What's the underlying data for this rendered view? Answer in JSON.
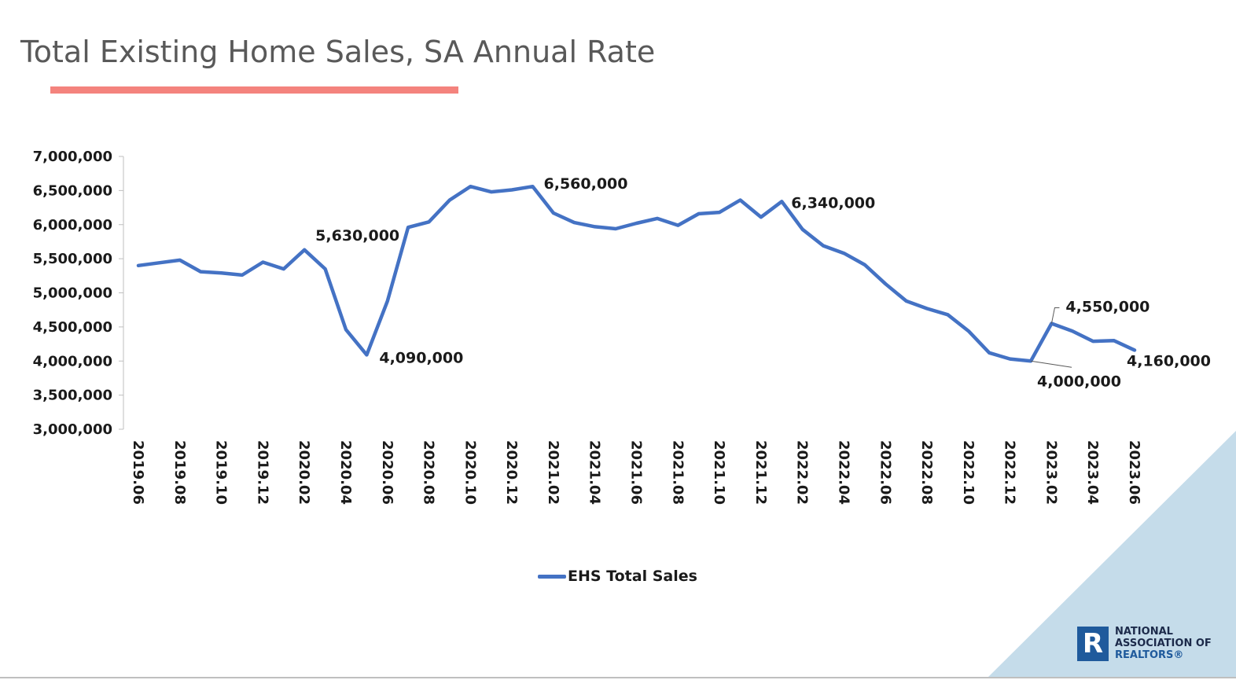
{
  "page": {
    "title": "Total Existing Home Sales, SA Annual Rate",
    "accent_color": "#f4837d",
    "corner_color": "#c5dcea"
  },
  "legend": {
    "series_label": "EHS Total Sales"
  },
  "logo": {
    "icon": "realtor-r-icon",
    "line1": "NATIONAL",
    "line2": "ASSOCIATION OF",
    "line3": "REALTORS®"
  },
  "chart_data": {
    "type": "line",
    "x": [
      "2019.06",
      "2019.07",
      "2019.08",
      "2019.09",
      "2019.10",
      "2019.11",
      "2019.12",
      "2020.01",
      "2020.02",
      "2020.03",
      "2020.04",
      "2020.05",
      "2020.06",
      "2020.07",
      "2020.08",
      "2020.09",
      "2020.10",
      "2020.11",
      "2020.12",
      "2021.01",
      "2021.02",
      "2021.03",
      "2021.04",
      "2021.05",
      "2021.06",
      "2021.07",
      "2021.08",
      "2021.09",
      "2021.10",
      "2021.11",
      "2021.12",
      "2022.01",
      "2022.02",
      "2022.03",
      "2022.04",
      "2022.05",
      "2022.06",
      "2022.07",
      "2022.08",
      "2022.09",
      "2022.10",
      "2022.11",
      "2022.12",
      "2023.01",
      "2023.02",
      "2023.03",
      "2023.04",
      "2023.05",
      "2023.06"
    ],
    "tick_labels": [
      "2019.06",
      "2019.08",
      "2019.10",
      "2019.12",
      "2020.02",
      "2020.04",
      "2020.06",
      "2020.08",
      "2020.10",
      "2020.12",
      "2021.02",
      "2021.04",
      "2021.06",
      "2021.08",
      "2021.10",
      "2021.12",
      "2022.02",
      "2022.04",
      "2022.06",
      "2022.08",
      "2022.10",
      "2022.12",
      "2023.02",
      "2023.04",
      "2023.06"
    ],
    "series": [
      {
        "name": "EHS Total Sales",
        "color": "#4472c4",
        "values": [
          5400000,
          5440000,
          5480000,
          5310000,
          5290000,
          5260000,
          5450000,
          5350000,
          5630000,
          5350000,
          4460000,
          4090000,
          4880000,
          5960000,
          6040000,
          6360000,
          6560000,
          6480000,
          6510000,
          6560000,
          6170000,
          6030000,
          5970000,
          5940000,
          6020000,
          6090000,
          5990000,
          6160000,
          6180000,
          6360000,
          6110000,
          6340000,
          5930000,
          5690000,
          5580000,
          5410000,
          5130000,
          4880000,
          4770000,
          4680000,
          4440000,
          4120000,
          4030000,
          4000000,
          4550000,
          4440000,
          4290000,
          4300000,
          4160000
        ]
      }
    ],
    "annotations": [
      {
        "index": 8,
        "label": "5,630,000"
      },
      {
        "index": 11,
        "label": "4,090,000"
      },
      {
        "index": 19,
        "label": "6,560,000"
      },
      {
        "index": 31,
        "label": "6,340,000"
      },
      {
        "index": 43,
        "label": "4,000,000"
      },
      {
        "index": 44,
        "label": "4,550,000"
      },
      {
        "index": 48,
        "label": "4,160,000"
      }
    ],
    "ylim": [
      3000000,
      7000000
    ],
    "yticks": [
      "3,000,000",
      "3,500,000",
      "4,000,000",
      "4,500,000",
      "5,000,000",
      "5,500,000",
      "6,000,000",
      "6,500,000",
      "7,000,000"
    ],
    "ytick_values": [
      3000000,
      3500000,
      4000000,
      4500000,
      5000000,
      5500000,
      6000000,
      6500000,
      7000000
    ],
    "grid": false,
    "legend_position": "bottom"
  }
}
